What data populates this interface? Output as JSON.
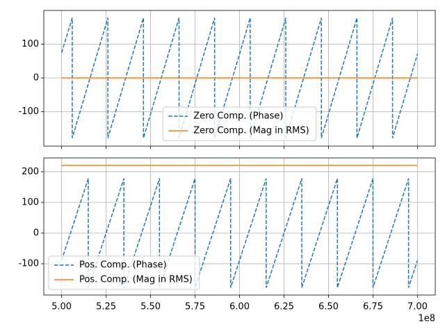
{
  "chart_data": [
    {
      "type": "line",
      "grid": true,
      "legend": "lower center",
      "xlim": [
        490000000,
        710000000
      ],
      "xticks": [
        500000000,
        525000000,
        550000000,
        575000000,
        600000000,
        625000000,
        650000000,
        675000000,
        700000000
      ],
      "ylim": [
        -202,
        200
      ],
      "yticks": [
        -100,
        0,
        100
      ],
      "x": [
        500000000,
        506000000,
        506000000,
        526000000,
        526000000,
        546000000,
        546000000,
        566000000,
        566000000,
        586000000,
        586000000,
        606000000,
        606000000,
        626000000,
        626000000,
        646000000,
        646000000,
        666000000,
        666000000,
        686000000,
        686000000,
        700000000
      ],
      "series": [
        {
          "name": "Zero Comp. (Phase)",
          "color": "#1f77b4",
          "dashed": true,
          "values": [
            75,
            178,
            -178,
            178,
            -178,
            178,
            -178,
            178,
            -178,
            178,
            -178,
            178,
            -178,
            178,
            -178,
            178,
            -178,
            178,
            -178,
            178,
            -178,
            71
          ]
        },
        {
          "name": "Zero Comp. (Mag in RMS)",
          "color": "#ff7f0e",
          "dashed": false,
          "values": [
            0,
            0,
            0,
            0,
            0,
            0,
            0,
            0,
            0,
            0,
            0,
            0,
            0,
            0,
            0,
            0,
            0,
            0,
            0,
            0,
            0,
            0
          ]
        }
      ]
    },
    {
      "type": "line",
      "grid": true,
      "legend": "lower left",
      "xlim": [
        490000000,
        710000000
      ],
      "xticks": [
        {
          "value": 500000000,
          "label": "5.00"
        },
        {
          "value": 525000000,
          "label": "5.25"
        },
        {
          "value": 550000000,
          "label": "5.50"
        },
        {
          "value": 575000000,
          "label": "5.75"
        },
        {
          "value": 600000000,
          "label": "6.00"
        },
        {
          "value": 625000000,
          "label": "6.25"
        },
        {
          "value": 650000000,
          "label": "6.50"
        },
        {
          "value": 675000000,
          "label": "6.75"
        },
        {
          "value": 700000000,
          "label": "7.00"
        }
      ],
      "x_offset_label": "1e8",
      "ylim": [
        -202,
        245
      ],
      "yticks": [
        -100,
        0,
        100,
        200
      ],
      "x": [
        500000000,
        515000000,
        515000000,
        535000000,
        535000000,
        555000000,
        555000000,
        575000000,
        575000000,
        595000000,
        595000000,
        615000000,
        615000000,
        635000000,
        635000000,
        655000000,
        655000000,
        675000000,
        675000000,
        695000000,
        695000000,
        700000000
      ],
      "series": [
        {
          "name": "Pos. Comp. (Phase)",
          "color": "#1f77b4",
          "dashed": true,
          "values": [
            -89,
            178,
            -178,
            178,
            -178,
            178,
            -178,
            178,
            -178,
            178,
            -178,
            178,
            -178,
            178,
            -178,
            178,
            -178,
            178,
            -178,
            178,
            -178,
            -89
          ]
        },
        {
          "name": "Pos. Comp. (Mag in RMS)",
          "color": "#ff7f0e",
          "dashed": false,
          "values": [
            221,
            221,
            221,
            221,
            221,
            221,
            221,
            221,
            221,
            221,
            221,
            221,
            221,
            221,
            221,
            221,
            221,
            221,
            221,
            221,
            221,
            221
          ]
        }
      ]
    }
  ]
}
